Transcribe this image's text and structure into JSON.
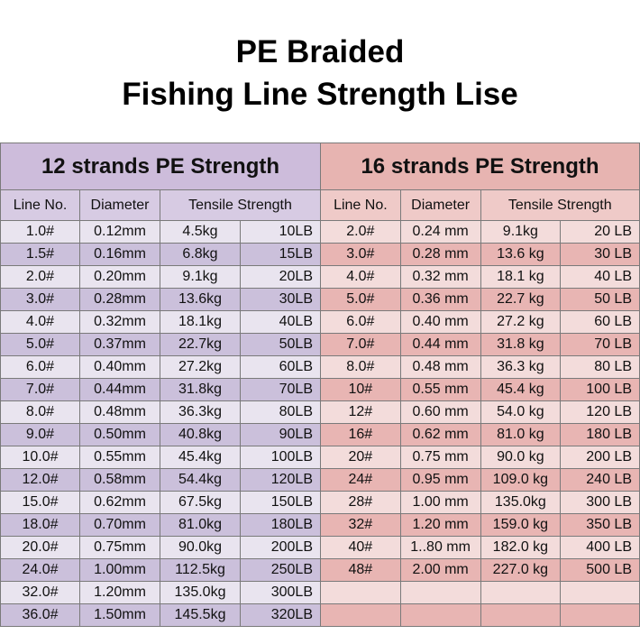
{
  "title": {
    "line1": "PE Braided",
    "line2": "Fishing Line Strength Lise"
  },
  "left_table": {
    "heading": "12 strands PE Strength",
    "columns": {
      "line_no": "Line No.",
      "diameter": "Diameter",
      "tensile": "Tensile Strength"
    },
    "rows": [
      [
        "1.0#",
        "0.12mm",
        "4.5kg",
        "10LB"
      ],
      [
        "1.5#",
        "0.16mm",
        "6.8kg",
        "15LB"
      ],
      [
        "2.0#",
        "0.20mm",
        "9.1kg",
        "20LB"
      ],
      [
        "3.0#",
        "0.28mm",
        "13.6kg",
        "30LB"
      ],
      [
        "4.0#",
        "0.32mm",
        "18.1kg",
        "40LB"
      ],
      [
        "5.0#",
        "0.37mm",
        "22.7kg",
        "50LB"
      ],
      [
        "6.0#",
        "0.40mm",
        "27.2kg",
        "60LB"
      ],
      [
        "7.0#",
        "0.44mm",
        "31.8kg",
        "70LB"
      ],
      [
        "8.0#",
        "0.48mm",
        "36.3kg",
        "80LB"
      ],
      [
        "9.0#",
        "0.50mm",
        "40.8kg",
        "90LB"
      ],
      [
        "10.0#",
        "0.55mm",
        "45.4kg",
        "100LB"
      ],
      [
        "12.0#",
        "0.58mm",
        "54.4kg",
        "120LB"
      ],
      [
        "15.0#",
        "0.62mm",
        "67.5kg",
        "150LB"
      ],
      [
        "18.0#",
        "0.70mm",
        "81.0kg",
        "180LB"
      ],
      [
        "20.0#",
        "0.75mm",
        "90.0kg",
        "200LB"
      ],
      [
        "24.0#",
        "1.00mm",
        "112.5kg",
        "250LB"
      ],
      [
        "32.0#",
        "1.20mm",
        "135.0kg",
        "300LB"
      ],
      [
        "36.0#",
        "1.50mm",
        "145.5kg",
        "320LB"
      ]
    ]
  },
  "right_table": {
    "heading": "16 strands PE Strength",
    "columns": {
      "line_no": "Line No.",
      "diameter": "Diameter",
      "tensile": "Tensile Strength"
    },
    "rows": [
      [
        "2.0#",
        "0.24 mm",
        "9.1kg",
        "20 LB"
      ],
      [
        "3.0#",
        "0.28 mm",
        "13.6 kg",
        "30 LB"
      ],
      [
        "4.0#",
        "0.32 mm",
        "18.1 kg",
        "40 LB"
      ],
      [
        "5.0#",
        "0.36 mm",
        "22.7 kg",
        "50 LB"
      ],
      [
        "6.0#",
        "0.40 mm",
        "27.2 kg",
        "60 LB"
      ],
      [
        "7.0#",
        "0.44 mm",
        "31.8 kg",
        "70 LB"
      ],
      [
        "8.0#",
        "0.48 mm",
        "36.3 kg",
        "80 LB"
      ],
      [
        "10#",
        "0.55 mm",
        "45.4 kg",
        "100 LB"
      ],
      [
        "12#",
        "0.60 mm",
        "54.0 kg",
        "120 LB"
      ],
      [
        "16#",
        "0.62 mm",
        "81.0 kg",
        "180 LB"
      ],
      [
        "20#",
        "0.75 mm",
        "90.0 kg",
        "200 LB"
      ],
      [
        "24#",
        "0.95 mm",
        "109.0 kg",
        "240 LB"
      ],
      [
        "28#",
        "1.00 mm",
        "135.0kg",
        "300 LB"
      ],
      [
        "32#",
        "1.20 mm",
        "159.0 kg",
        "350 LB"
      ],
      [
        "40#",
        "1..80 mm",
        "182.0 kg",
        "400 LB"
      ],
      [
        "48#",
        "2.00 mm",
        "227.0 kg",
        "500 LB"
      ],
      [
        "",
        "",
        "",
        ""
      ],
      [
        "",
        "",
        "",
        ""
      ]
    ]
  }
}
